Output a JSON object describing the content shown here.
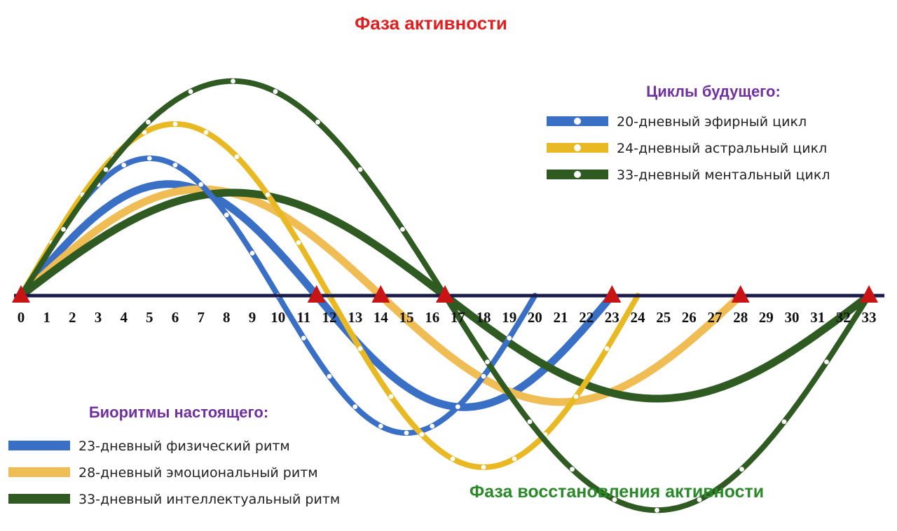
{
  "chart_data": {
    "type": "line",
    "title_top": "Фаза активности",
    "title_bottom": "Фаза восстановления активности",
    "x_ticks": [
      "0",
      "1",
      "2",
      "3",
      "4",
      "5",
      "6",
      "7",
      "8",
      "9",
      "10",
      "11",
      "12",
      "13",
      "14",
      "15",
      "16",
      "17",
      "18",
      "19",
      "20",
      "21",
      "22",
      "23",
      "24",
      "25",
      "26",
      "27",
      "28",
      "29",
      "30",
      "31",
      "32",
      "33"
    ],
    "xlim": [
      0,
      33
    ],
    "ylim": [
      -1,
      1
    ],
    "grid": false,
    "markers": [
      0,
      11.5,
      14,
      16.5,
      23,
      28,
      33
    ],
    "future_cycles": {
      "title": "Циклы будущего:",
      "legend_position": "top-right",
      "series": [
        {
          "name": "20-дневный эфирный цикл",
          "period": 20,
          "amplitude": 0.8,
          "color": "#3a6fc6"
        },
        {
          "name": "24-дневный астральный цикл",
          "period": 24,
          "amplitude": 1.0,
          "color": "#e8b922"
        },
        {
          "name": "33-дневный ментальный цикл",
          "period": 33,
          "amplitude": 1.25,
          "color": "#2f5a22"
        }
      ]
    },
    "present_biorhythms": {
      "title": "Биоритмы настоящего:",
      "legend_position": "bottom-left",
      "series": [
        {
          "name": "23-дневный физический ритм",
          "period": 23,
          "amplitude": 0.65,
          "color": "#3a6fc6"
        },
        {
          "name": "28-дневный эмоциональный ритм",
          "period": 28,
          "amplitude": 0.62,
          "color": "#f0bd55"
        },
        {
          "name": "33-дневный интеллектуальный ритм",
          "period": 33,
          "amplitude": 0.6,
          "color": "#2f5a22"
        }
      ]
    }
  }
}
